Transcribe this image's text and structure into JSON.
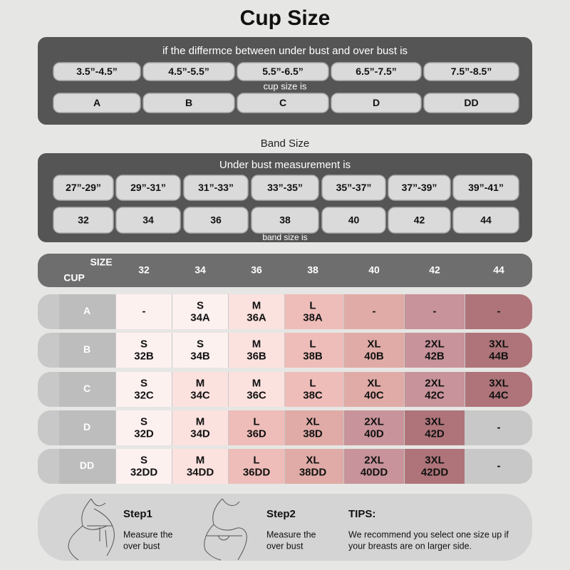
{
  "title": "Cup Size",
  "cup_panel": {
    "header": "if the differmce between under bust and over bust is",
    "ranges": [
      "3.5”-4.5”",
      "4.5”-5.5”",
      "5.5”-6.5”",
      "6.5”-7.5”",
      "7.5”-8.5”"
    ],
    "middle": "cup size is",
    "cups": [
      "A",
      "B",
      "C",
      "D",
      "DD"
    ]
  },
  "band_label": "Band Size",
  "band_panel": {
    "header": "Under bust measurement is",
    "ranges": [
      "27”-29”",
      "29”-31”",
      "31”-33”",
      "33”-35”",
      "35”-37”",
      "37”-39”",
      "39”-41”"
    ],
    "sizes": [
      "32",
      "34",
      "36",
      "38",
      "40",
      "42",
      "44"
    ],
    "footer": "band size is"
  },
  "size_table": {
    "corner_top": "SIZE",
    "corner_bottom": "CUP",
    "columns": [
      "32",
      "34",
      "36",
      "38",
      "40",
      "42",
      "44"
    ],
    "rows": [
      {
        "label": "A",
        "cells": [
          [
            "-"
          ],
          [
            "S",
            "34A"
          ],
          [
            "M",
            "36A"
          ],
          [
            "L",
            "38A"
          ],
          [
            "-"
          ],
          [
            "-"
          ],
          [
            "-"
          ]
        ],
        "fills": [
          "#fdf1f0",
          "#fdf1f0",
          "#fbe2df",
          "#efbdb9",
          "#e0aba6",
          "#c8939a",
          "#ae7479"
        ]
      },
      {
        "label": "B",
        "cells": [
          [
            "S",
            "32B"
          ],
          [
            "S",
            "34B"
          ],
          [
            "M",
            "36B"
          ],
          [
            "L",
            "38B"
          ],
          [
            "XL",
            "40B"
          ],
          [
            "2XL",
            "42B"
          ],
          [
            "3XL",
            "44B"
          ]
        ],
        "fills": [
          "#fdf1f0",
          "#fdf1f0",
          "#fbe2df",
          "#efbdb9",
          "#e0aba6",
          "#c8939a",
          "#ae7479"
        ]
      },
      {
        "label": "C",
        "cells": [
          [
            "S",
            "32C"
          ],
          [
            "M",
            "34C"
          ],
          [
            "M",
            "36C"
          ],
          [
            "L",
            "38C"
          ],
          [
            "XL",
            "40C"
          ],
          [
            "2XL",
            "42C"
          ],
          [
            "3XL",
            "44C"
          ]
        ],
        "fills": [
          "#fdf1f0",
          "#fbe2df",
          "#fbe2df",
          "#efbdb9",
          "#e0aba6",
          "#c8939a",
          "#ae7479"
        ]
      },
      {
        "label": "D",
        "cells": [
          [
            "S",
            "32D"
          ],
          [
            "M",
            "34D"
          ],
          [
            "L",
            "36D"
          ],
          [
            "XL",
            "38D"
          ],
          [
            "2XL",
            "40D"
          ],
          [
            "3XL",
            "42D"
          ],
          [
            "-"
          ]
        ],
        "fills": [
          "#fdf1f0",
          "#fbe2df",
          "#efbdb9",
          "#e0aba6",
          "#c8939a",
          "#ae7479",
          "#c8c8c8"
        ]
      },
      {
        "label": "DD",
        "cells": [
          [
            "S",
            "32DD"
          ],
          [
            "M",
            "34DD"
          ],
          [
            "L",
            "36DD"
          ],
          [
            "XL",
            "38DD"
          ],
          [
            "2XL",
            "40DD"
          ],
          [
            "3XL",
            "42DD"
          ],
          [
            "-"
          ]
        ],
        "fills": [
          "#fdf1f0",
          "#fbe2df",
          "#efbdb9",
          "#e0aba6",
          "#c8939a",
          "#ae7479",
          "#c8c8c8"
        ]
      }
    ]
  },
  "tips": {
    "step1": {
      "title": "Step1",
      "lines": [
        "Measure the",
        "over bust"
      ]
    },
    "step2": {
      "title": "Step2",
      "lines": [
        "Measure the",
        "over bust"
      ]
    },
    "tips": {
      "title": "TIPS:",
      "lines": [
        "We recommend you select one size up if",
        "your breasts are on larger side."
      ]
    }
  }
}
